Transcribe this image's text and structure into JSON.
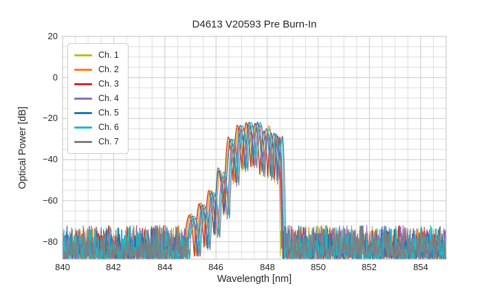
{
  "chart_data": {
    "type": "line",
    "title": "D4613 V20593 Pre Burn-In",
    "xlabel": "Wavelength [nm]",
    "ylabel": "Optical Power [dB]",
    "xlim": [
      840,
      855
    ],
    "ylim": [
      -88.5,
      20
    ],
    "x_major_ticks": [
      840,
      842,
      844,
      846,
      848,
      850,
      852,
      854
    ],
    "y_major_ticks": [
      20,
      0,
      -20,
      -40,
      -60,
      -80
    ],
    "x_minor_step_nm": 0.5,
    "y_minor_step_db": 5,
    "grid": "on",
    "legend_position": "upper-left",
    "grid_major_color": "#cfcfcf",
    "grid_minor_color": "#dcdcdc",
    "spine_color": "#bfbfbf",
    "text_color": "#262626",
    "notch_db": 21,
    "valley_floor_db": -87,
    "peak_db_max": -21.7,
    "noise": {
      "band_top_db": -73.5,
      "band_bottom_db": -89.5,
      "spike_top_db": -72,
      "spike_rate": 0.05,
      "step_nm": 0.018
    },
    "series": [
      {
        "name": "Ch. 1",
        "color": "#bcbd22",
        "signal_start_nm": 844.78,
        "drop_nm": 848.52,
        "lobes": [
          [
            844.98,
            -67
          ],
          [
            845.36,
            -61.5
          ],
          [
            845.74,
            -56
          ],
          [
            846.12,
            -46
          ],
          [
            846.5,
            -31
          ],
          [
            846.85,
            -24.5
          ],
          [
            847.2,
            -22.6
          ],
          [
            847.55,
            -22.6
          ],
          [
            847.9,
            -26.5
          ],
          [
            848.18,
            -28
          ],
          [
            848.4,
            -30
          ]
        ]
      },
      {
        "name": "Ch. 2",
        "color": "#ff7f0e",
        "signal_start_nm": 844.83,
        "drop_nm": 848.62,
        "lobes": [
          [
            845.03,
            -66.5
          ],
          [
            845.41,
            -61
          ],
          [
            845.79,
            -55
          ],
          [
            846.17,
            -45.5
          ],
          [
            846.55,
            -30
          ],
          [
            846.9,
            -23.8
          ],
          [
            847.25,
            -22.4
          ],
          [
            847.6,
            -22.4
          ],
          [
            848.08,
            -23.5
          ],
          [
            848.4,
            -28.5
          ]
        ]
      },
      {
        "name": "Ch. 3",
        "color": "#d62728",
        "signal_start_nm": 844.76,
        "drop_nm": 848.58,
        "lobes": [
          [
            844.96,
            -67
          ],
          [
            845.34,
            -61.5
          ],
          [
            845.72,
            -55
          ],
          [
            846.1,
            -45.5
          ],
          [
            846.48,
            -29
          ],
          [
            846.83,
            -23.2
          ],
          [
            847.18,
            -21.9
          ],
          [
            847.53,
            -22.3
          ],
          [
            847.88,
            -26
          ],
          [
            848.16,
            -27
          ],
          [
            848.42,
            -28.5
          ]
        ]
      },
      {
        "name": "Ch. 4",
        "color": "#9467bd",
        "signal_start_nm": 844.91,
        "drop_nm": 848.6,
        "lobes": [
          [
            845.11,
            -68.5
          ],
          [
            845.49,
            -63
          ],
          [
            845.87,
            -57
          ],
          [
            846.25,
            -48
          ],
          [
            846.63,
            -32
          ],
          [
            846.98,
            -25
          ],
          [
            847.33,
            -23
          ],
          [
            847.68,
            -22.6
          ],
          [
            848.03,
            -27
          ],
          [
            848.31,
            -29
          ],
          [
            848.5,
            -31
          ]
        ]
      },
      {
        "name": "Ch. 5",
        "color": "#1f77b4",
        "signal_start_nm": 844.88,
        "drop_nm": 848.64,
        "lobes": [
          [
            845.08,
            -67.5
          ],
          [
            845.46,
            -62
          ],
          [
            845.84,
            -55.5
          ],
          [
            846.08,
            -44
          ],
          [
            846.6,
            -30
          ],
          [
            846.95,
            -23.3
          ],
          [
            847.3,
            -21.7
          ],
          [
            847.62,
            -21.7
          ],
          [
            847.97,
            -25
          ],
          [
            848.27,
            -27
          ],
          [
            848.5,
            -29
          ]
        ]
      },
      {
        "name": "Ch. 6",
        "color": "#17becf",
        "signal_start_nm": 844.96,
        "drop_nm": 848.68,
        "lobes": [
          [
            845.16,
            -67.5
          ],
          [
            845.54,
            -62
          ],
          [
            845.92,
            -56
          ],
          [
            846.3,
            -46
          ],
          [
            846.68,
            -30
          ],
          [
            847.03,
            -23.3
          ],
          [
            847.38,
            -21.8
          ],
          [
            847.73,
            -21.8
          ],
          [
            848.08,
            -25
          ],
          [
            848.36,
            -27.5
          ],
          [
            848.58,
            -29
          ]
        ]
      },
      {
        "name": "Ch. 7",
        "color": "#7f7f7f",
        "signal_start_nm": 845.0,
        "drop_nm": 848.74,
        "lobes": [
          [
            845.2,
            -68.5
          ],
          [
            845.58,
            -63
          ],
          [
            845.96,
            -57
          ],
          [
            846.34,
            -47.5
          ],
          [
            846.72,
            -31.5
          ],
          [
            847.07,
            -24.5
          ],
          [
            847.42,
            -23
          ],
          [
            847.77,
            -23
          ],
          [
            848.05,
            -27.5
          ],
          [
            848.33,
            -27.5
          ],
          [
            848.6,
            -28.5
          ]
        ]
      }
    ]
  }
}
